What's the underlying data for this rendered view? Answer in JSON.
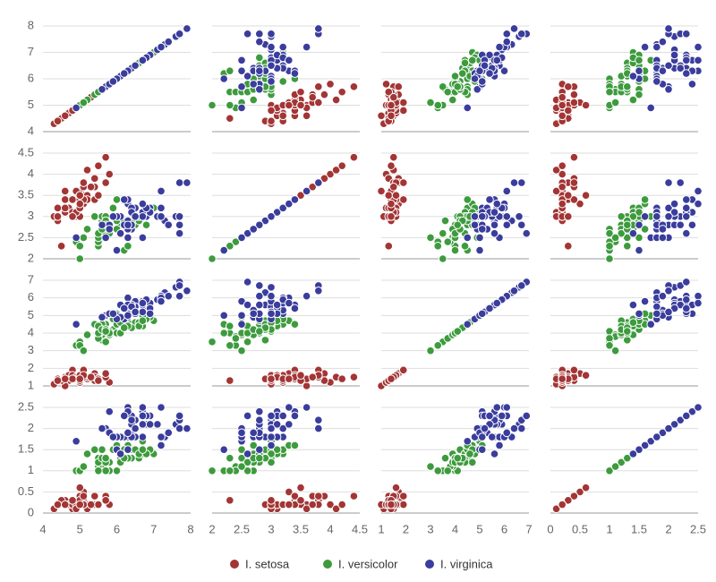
{
  "chart_data": {
    "type": "scatter",
    "grid": true,
    "axes": [
      {
        "lim": [
          4,
          8
        ],
        "ticks": [
          4,
          5,
          6,
          7,
          8
        ]
      },
      {
        "lim": [
          2,
          4.5
        ],
        "ticks": [
          2,
          2.5,
          3,
          3.5,
          4,
          4.5
        ]
      },
      {
        "lim": [
          1,
          7
        ],
        "ticks": [
          1,
          2,
          3,
          4,
          5,
          6,
          7
        ]
      },
      {
        "lim": [
          0,
          2.5
        ],
        "ticks": [
          0,
          0.5,
          1,
          1.5,
          2,
          2.5
        ]
      }
    ],
    "series": [
      {
        "name": "I. setosa",
        "color": "#a33535",
        "values": [
          [
            5.1,
            4.9,
            4.7,
            4.6,
            5.0,
            5.4,
            4.6,
            5.0,
            4.4,
            4.9,
            5.4,
            4.8,
            4.8,
            4.3,
            5.8,
            5.7,
            5.4,
            5.1,
            5.7,
            5.1,
            5.4,
            5.1,
            4.6,
            5.1,
            4.8,
            5.0,
            5.0,
            5.2,
            5.2,
            4.7,
            4.8,
            5.4,
            5.2,
            5.5,
            4.9,
            5.0,
            5.5,
            4.9,
            4.4,
            5.1,
            5.0,
            4.5,
            4.4,
            5.0,
            5.1,
            4.8,
            5.1,
            4.6,
            5.3,
            5.0
          ],
          [
            3.5,
            3.0,
            3.2,
            3.1,
            3.6,
            3.9,
            3.4,
            3.4,
            2.9,
            3.1,
            3.7,
            3.4,
            3.0,
            3.0,
            4.0,
            4.4,
            3.9,
            3.5,
            3.8,
            3.8,
            3.4,
            3.7,
            3.6,
            3.3,
            3.4,
            3.0,
            3.4,
            3.5,
            3.4,
            3.2,
            3.1,
            3.4,
            4.1,
            4.2,
            3.1,
            3.2,
            3.5,
            3.6,
            3.0,
            3.4,
            3.5,
            2.3,
            3.2,
            3.5,
            3.8,
            3.0,
            3.8,
            3.2,
            3.7,
            3.3
          ],
          [
            1.4,
            1.4,
            1.3,
            1.5,
            1.4,
            1.7,
            1.4,
            1.5,
            1.4,
            1.5,
            1.5,
            1.6,
            1.4,
            1.1,
            1.2,
            1.5,
            1.3,
            1.4,
            1.7,
            1.5,
            1.7,
            1.5,
            1.0,
            1.7,
            1.9,
            1.6,
            1.6,
            1.5,
            1.4,
            1.6,
            1.6,
            1.5,
            1.5,
            1.4,
            1.5,
            1.2,
            1.3,
            1.4,
            1.3,
            1.5,
            1.3,
            1.3,
            1.3,
            1.6,
            1.9,
            1.4,
            1.6,
            1.4,
            1.5,
            1.4
          ],
          [
            0.2,
            0.2,
            0.2,
            0.2,
            0.2,
            0.4,
            0.3,
            0.2,
            0.2,
            0.1,
            0.2,
            0.2,
            0.1,
            0.1,
            0.2,
            0.4,
            0.4,
            0.3,
            0.3,
            0.3,
            0.2,
            0.4,
            0.2,
            0.5,
            0.2,
            0.2,
            0.4,
            0.2,
            0.2,
            0.2,
            0.2,
            0.4,
            0.1,
            0.2,
            0.2,
            0.2,
            0.2,
            0.1,
            0.2,
            0.2,
            0.3,
            0.3,
            0.2,
            0.6,
            0.4,
            0.3,
            0.2,
            0.2,
            0.2,
            0.2
          ]
        ]
      },
      {
        "name": "I. versicolor",
        "color": "#3d9b3d",
        "values": [
          [
            7.0,
            6.4,
            6.9,
            5.5,
            6.5,
            5.7,
            6.3,
            4.9,
            6.6,
            5.2,
            5.0,
            5.9,
            6.0,
            6.1,
            5.6,
            6.7,
            5.6,
            5.8,
            6.2,
            5.6,
            5.9,
            6.1,
            6.3,
            6.1,
            6.4,
            6.6,
            6.8,
            6.7,
            6.0,
            5.7,
            5.5,
            5.5,
            5.8,
            6.0,
            5.4,
            6.0,
            6.7,
            6.3,
            5.6,
            5.5,
            5.5,
            6.1,
            5.8,
            5.0,
            5.6,
            5.7,
            5.7,
            6.2,
            5.1,
            5.7
          ],
          [
            3.2,
            3.2,
            3.1,
            2.3,
            2.8,
            2.8,
            3.3,
            2.4,
            2.9,
            2.7,
            2.0,
            3.0,
            2.2,
            2.9,
            2.9,
            3.1,
            3.0,
            2.7,
            2.2,
            2.5,
            3.2,
            2.8,
            2.5,
            2.8,
            2.9,
            3.0,
            2.8,
            3.0,
            2.9,
            2.6,
            2.4,
            2.4,
            2.7,
            2.7,
            3.0,
            3.4,
            3.1,
            2.3,
            3.0,
            2.5,
            2.6,
            3.0,
            2.6,
            2.3,
            2.7,
            3.0,
            2.9,
            2.9,
            2.5,
            2.8
          ],
          [
            4.7,
            4.5,
            4.9,
            4.0,
            4.6,
            4.5,
            4.7,
            3.3,
            4.6,
            3.9,
            3.5,
            4.2,
            4.0,
            4.7,
            3.6,
            4.4,
            4.5,
            4.1,
            4.5,
            3.9,
            4.8,
            4.0,
            4.9,
            4.7,
            4.3,
            4.4,
            4.8,
            5.0,
            4.5,
            3.5,
            3.8,
            3.7,
            3.9,
            5.1,
            4.5,
            4.5,
            4.7,
            4.4,
            4.1,
            4.0,
            4.4,
            4.6,
            4.0,
            3.3,
            4.2,
            4.2,
            4.2,
            4.3,
            3.0,
            4.1
          ],
          [
            1.4,
            1.5,
            1.5,
            1.3,
            1.5,
            1.3,
            1.6,
            1.0,
            1.3,
            1.4,
            1.0,
            1.5,
            1.0,
            1.4,
            1.3,
            1.4,
            1.5,
            1.0,
            1.5,
            1.1,
            1.8,
            1.3,
            1.5,
            1.2,
            1.3,
            1.4,
            1.4,
            1.7,
            1.5,
            1.0,
            1.1,
            1.0,
            1.2,
            1.6,
            1.5,
            1.6,
            1.5,
            1.3,
            1.3,
            1.3,
            1.2,
            1.4,
            1.2,
            1.0,
            1.3,
            1.2,
            1.3,
            1.3,
            1.1,
            1.3
          ]
        ]
      },
      {
        "name": "I. virginica",
        "color": "#3a3d9c",
        "values": [
          [
            6.3,
            5.8,
            7.1,
            6.3,
            6.5,
            7.6,
            4.9,
            7.3,
            6.7,
            7.2,
            6.5,
            6.4,
            6.8,
            5.7,
            5.8,
            6.4,
            6.5,
            7.7,
            7.7,
            6.0,
            6.9,
            5.6,
            7.7,
            6.3,
            6.7,
            7.2,
            6.2,
            6.1,
            6.4,
            7.2,
            7.4,
            7.9,
            6.4,
            6.3,
            6.1,
            7.7,
            6.3,
            6.4,
            6.0,
            6.9,
            6.7,
            6.9,
            5.8,
            6.8,
            6.7,
            6.7,
            6.3,
            6.5,
            6.2,
            5.9
          ],
          [
            3.3,
            2.7,
            3.0,
            2.9,
            3.0,
            3.0,
            2.5,
            2.9,
            2.5,
            3.6,
            3.2,
            2.7,
            3.0,
            2.5,
            2.8,
            3.2,
            3.0,
            3.8,
            2.6,
            2.2,
            3.2,
            2.8,
            2.8,
            2.7,
            3.3,
            3.2,
            2.8,
            3.0,
            2.8,
            3.0,
            2.8,
            3.8,
            2.8,
            2.8,
            2.6,
            3.0,
            3.4,
            3.1,
            3.0,
            3.1,
            3.1,
            3.1,
            2.7,
            3.2,
            3.3,
            3.0,
            2.5,
            3.0,
            3.4,
            3.0
          ],
          [
            6.0,
            5.1,
            5.9,
            5.6,
            5.8,
            6.6,
            4.5,
            6.3,
            5.8,
            6.1,
            5.1,
            5.3,
            5.5,
            5.0,
            5.1,
            5.3,
            5.5,
            6.7,
            6.9,
            5.0,
            5.7,
            4.9,
            6.7,
            4.9,
            5.7,
            6.0,
            4.8,
            4.9,
            5.6,
            5.8,
            6.1,
            6.4,
            5.6,
            5.1,
            5.6,
            6.1,
            5.6,
            5.5,
            4.8,
            5.4,
            5.6,
            5.1,
            5.1,
            5.9,
            5.7,
            5.2,
            5.0,
            5.2,
            5.4,
            5.1
          ],
          [
            2.5,
            1.9,
            2.1,
            1.8,
            2.2,
            2.1,
            1.7,
            1.8,
            1.8,
            2.5,
            2.0,
            1.9,
            2.1,
            2.0,
            2.4,
            2.3,
            1.8,
            2.2,
            2.3,
            1.5,
            2.3,
            2.0,
            2.0,
            1.8,
            2.1,
            1.8,
            1.8,
            1.8,
            2.1,
            1.6,
            1.9,
            2.0,
            2.2,
            1.5,
            1.4,
            2.3,
            2.4,
            1.8,
            1.8,
            2.1,
            2.4,
            2.3,
            1.9,
            2.3,
            2.5,
            2.3,
            1.9,
            2.0,
            2.3,
            1.8
          ]
        ]
      }
    ]
  }
}
